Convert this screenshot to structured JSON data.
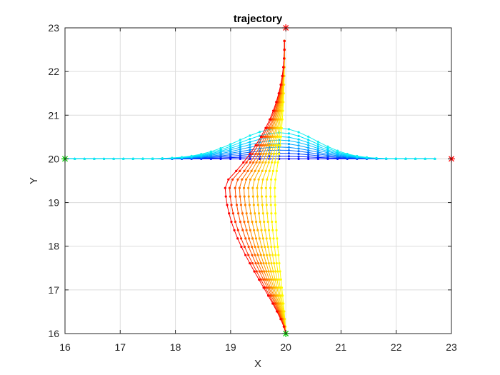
{
  "chart_data": {
    "type": "line",
    "title": "trajectory",
    "xlabel": "X",
    "ylabel": "Y",
    "xlim": [
      16,
      23
    ],
    "ylim": [
      16,
      23
    ],
    "xticks": [
      "16",
      "17",
      "18",
      "19",
      "20",
      "21",
      "22",
      "23"
    ],
    "yticks": [
      "16",
      "17",
      "18",
      "19",
      "20",
      "21",
      "22",
      "23"
    ],
    "grid": true,
    "legend": "none",
    "colormap": "jet",
    "marker_size_note": "dot markers on every trajectory point",
    "families": [
      {
        "group": "horizontal",
        "start": [
          16,
          20
        ],
        "end": [
          22.7,
          20
        ],
        "n_curves": 10,
        "n_points": 39,
        "peak_x": 19.9,
        "peak_heights": [
          0,
          0.06,
          0.13,
          0.2,
          0.27,
          0.35,
          0.43,
          0.51,
          0.6,
          0.7
        ],
        "colors": [
          "#0000ff",
          "#0024ff",
          "#0048ff",
          "#006cff",
          "#0090ff",
          "#00a8ff",
          "#00c0ff",
          "#00d4ff",
          "#00e4f8",
          "#10f0f0"
        ]
      },
      {
        "group": "vertical",
        "start": [
          20,
          16
        ],
        "end": [
          19.97,
          22.7
        ],
        "n_curves": 12,
        "n_points": 36,
        "bulge_max": [
          0.2,
          0.28,
          0.36,
          0.44,
          0.52,
          0.6,
          0.68,
          0.76,
          0.84,
          0.92,
          1.02,
          1.1
        ],
        "colors": [
          "#ffff00",
          "#fff200",
          "#ffe400",
          "#ffd500",
          "#ffc400",
          "#ffb200",
          "#ff9c00",
          "#ff8400",
          "#ff6a00",
          "#ff4e00",
          "#ff2e00",
          "#ff0000"
        ]
      }
    ],
    "special_markers": [
      {
        "label": "start",
        "x": 16,
        "y": 20,
        "color": "#00cc00",
        "shape": "star"
      },
      {
        "label": "goal",
        "x": 23,
        "y": 20,
        "color": "#ff0000",
        "shape": "star"
      },
      {
        "label": "start",
        "x": 20,
        "y": 16,
        "color": "#00cc00",
        "shape": "star"
      },
      {
        "label": "goal",
        "x": 20,
        "y": 23,
        "color": "#ff0000",
        "shape": "star"
      }
    ]
  }
}
